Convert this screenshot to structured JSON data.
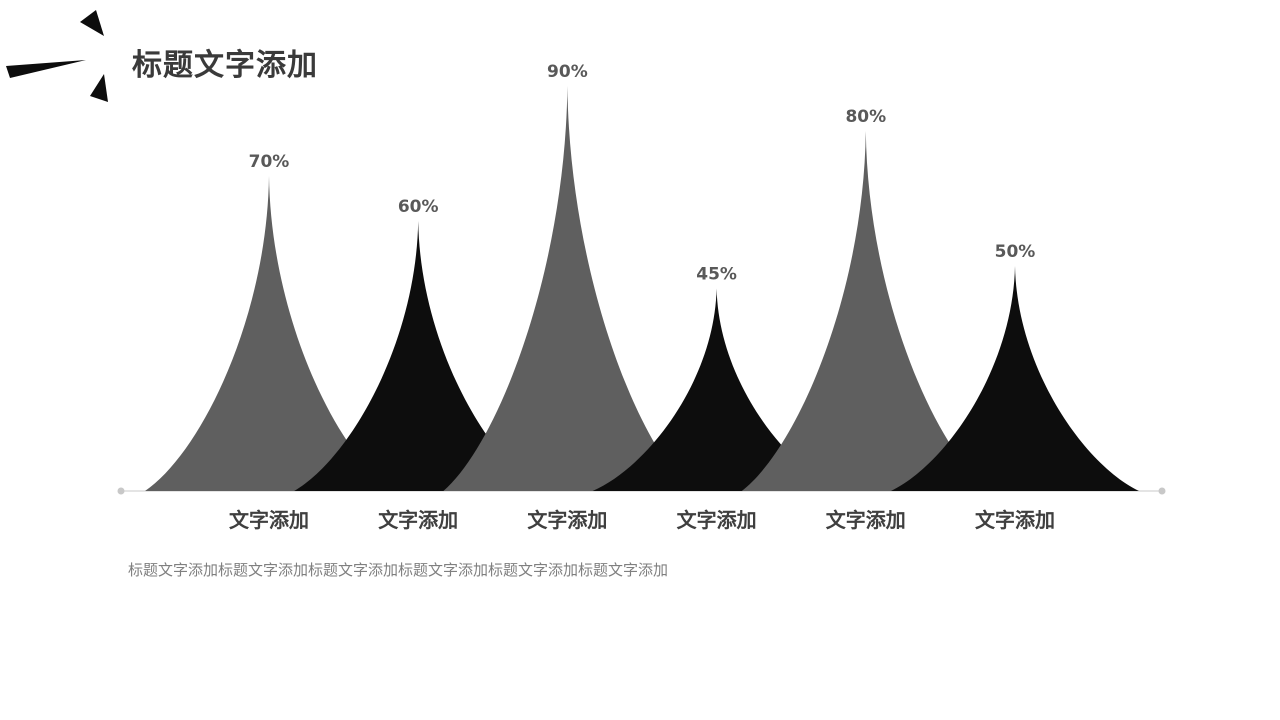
{
  "slide": {
    "title": "标题文字添加",
    "caption": "标题文字添加标题文字添加标题文字添加标题文字添加标题文字添加标题文字添加"
  },
  "colors": {
    "gray_peak": "#5f5f5f",
    "black_peak": "#0d0d0d",
    "baseline": "#c8c8c8",
    "title": "#3a3a3a"
  },
  "chart_data": {
    "type": "area",
    "categories": [
      "文字添加",
      "文字添加",
      "文字添加",
      "文字添加",
      "文字添加",
      "文字添加"
    ],
    "values": [
      70,
      60,
      90,
      45,
      80,
      50
    ],
    "value_labels": [
      "70%",
      "60%",
      "90%",
      "45%",
      "80%",
      "50%"
    ],
    "ylim": [
      0,
      100
    ],
    "grid": false,
    "legend": "none"
  }
}
